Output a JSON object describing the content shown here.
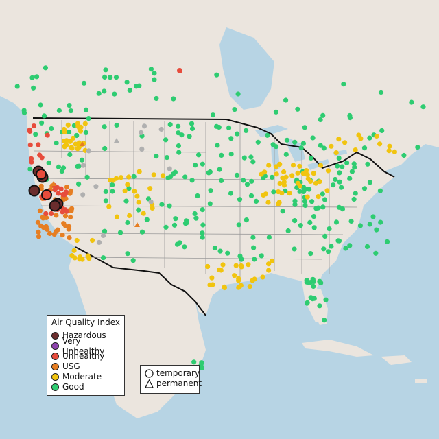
{
  "aqi_legend": {
    "title": "Air Quality Index",
    "categories": [
      {
        "label": "Hazardous",
        "color": "#6b2d2d"
      },
      {
        "label": "Very Unhealthy",
        "color": "#8e44ad"
      },
      {
        "label": "Unhealthy",
        "color": "#e74c3c"
      },
      {
        "label": "USG",
        "color": "#e67e22"
      },
      {
        "label": "Moderate",
        "color": "#f1c40f"
      },
      {
        "label": "Good",
        "color": "#2ecc71"
      }
    ]
  },
  "monitor_legend": {
    "items": [
      {
        "label": "temporary",
        "shape": "circle"
      },
      {
        "label": "permanent",
        "shape": "triangle"
      }
    ]
  },
  "colors": {
    "land": "#ebe5de",
    "water": "#b7d4e4",
    "border": "#111111",
    "state_line": "#9a9a9a",
    "unknown": "#b0b0b0"
  }
}
